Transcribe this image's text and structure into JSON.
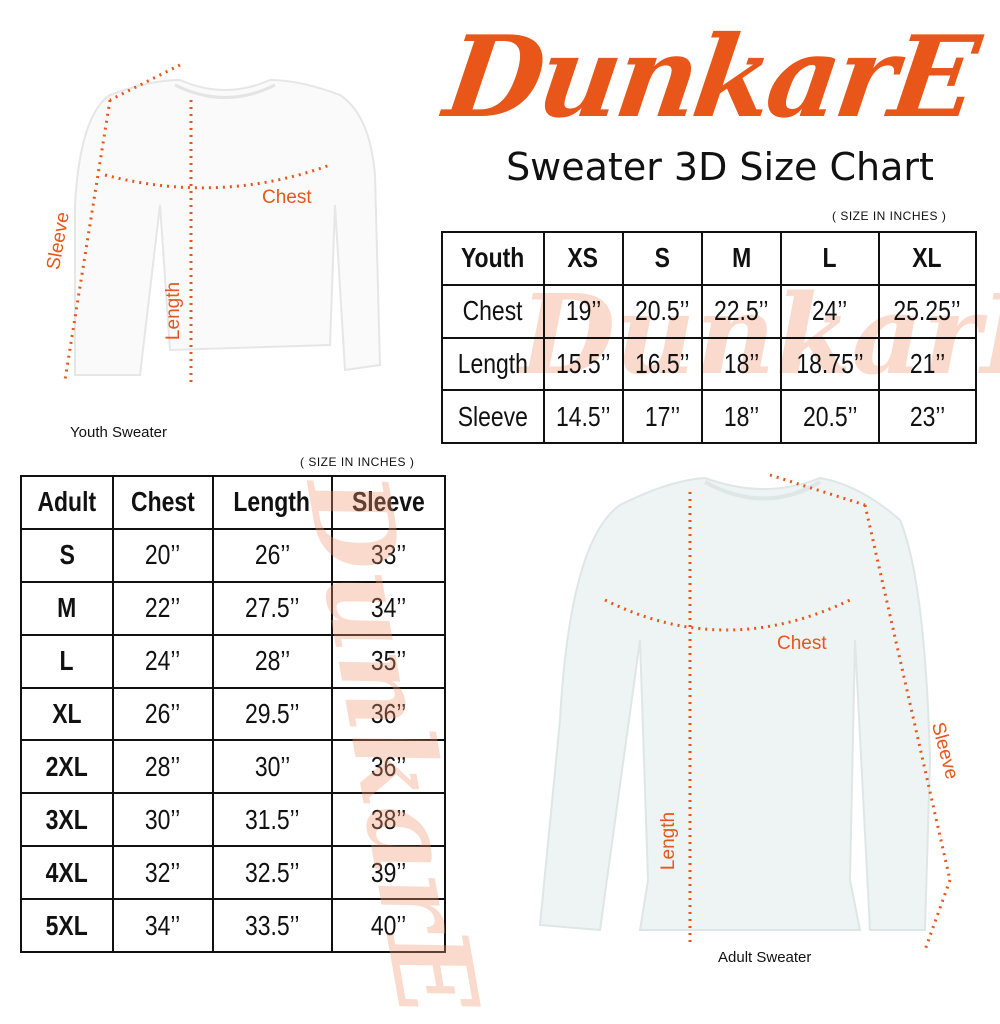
{
  "brand": {
    "logo_text": "DunkarE",
    "color": "#e8561a"
  },
  "subtitle": "Sweater 3D Size Chart",
  "youth": {
    "caption": "Youth Sweater",
    "note": "( SIZE IN INCHES )",
    "labels": {
      "chest": "Chest",
      "length": "Length",
      "sleeve": "Sleeve"
    },
    "header": [
      "Youth",
      "XS",
      "S",
      "M",
      "L",
      "XL"
    ],
    "rows": [
      [
        "Chest",
        "19’’",
        "20.5’’",
        "22.5’’",
        "24’’",
        "25.25’’"
      ],
      [
        "Length",
        "15.5’’",
        "16.5’’",
        "18’’",
        "18.75’’",
        "21’’"
      ],
      [
        "Sleeve",
        "14.5’’",
        "17’’",
        "18’’",
        "20.5’’",
        "23’’"
      ]
    ]
  },
  "adult": {
    "caption": "Adult Sweater",
    "note": "( SIZE IN INCHES )",
    "labels": {
      "chest": "Chest",
      "length": "Length",
      "sleeve": "Sleeve"
    },
    "header": [
      "Adult",
      "Chest",
      "Length",
      "Sleeve"
    ],
    "rows": [
      [
        "S",
        "20’’",
        "26’’",
        "33’’"
      ],
      [
        "M",
        "22’’",
        "27.5’’",
        "34’’"
      ],
      [
        "L",
        "24’’",
        "28’’",
        "35’’"
      ],
      [
        "XL",
        "26’’",
        "29.5’’",
        "36’’"
      ],
      [
        "2XL",
        "28’’",
        "30’’",
        "36’’"
      ],
      [
        "3XL",
        "30’’",
        "31.5’’",
        "38’’"
      ],
      [
        "4XL",
        "32’’",
        "32.5’’",
        "39’’"
      ],
      [
        "5XL",
        "34’’",
        "33.5’’",
        "40’’"
      ]
    ]
  }
}
